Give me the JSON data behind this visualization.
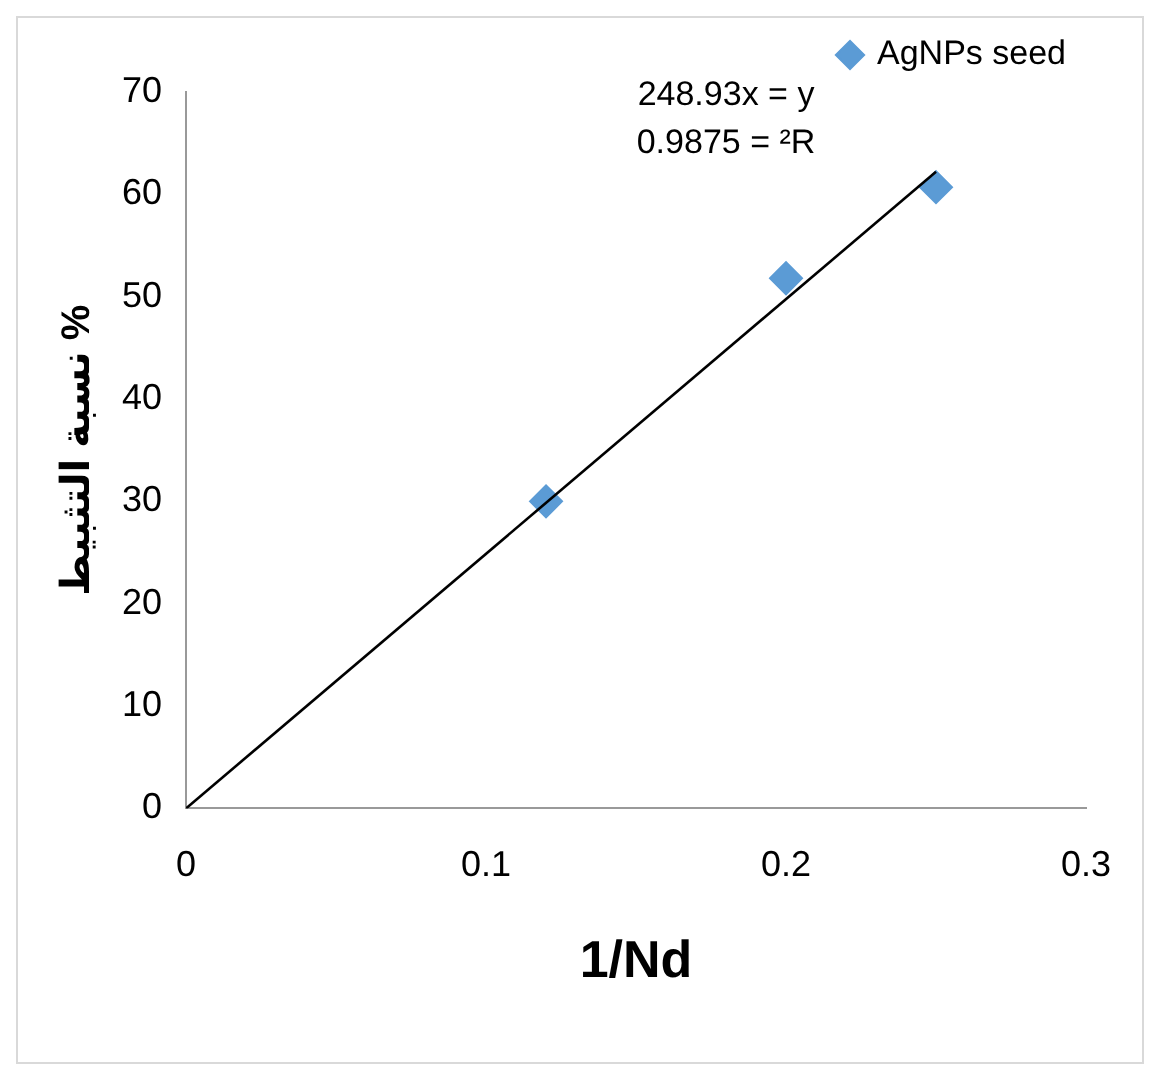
{
  "chart_data": {
    "type": "scatter",
    "xlabel": "1/Nd",
    "ylabel": "نسبة التثبيط %",
    "xlim": [
      0,
      0.3
    ],
    "xticks": [
      0,
      0.1,
      0.2,
      0.3
    ],
    "ylim": [
      0,
      70
    ],
    "yticks": [
      0,
      10,
      20,
      30,
      40,
      50,
      60,
      70
    ],
    "grid": false,
    "legend": "top right",
    "annotations": [
      "248.93x = y",
      "0.9875 = ²R"
    ],
    "series": [
      {
        "name": "AgNPs seed",
        "color": "#5b9bd5",
        "marker": "diamond",
        "x": [
          0.12,
          0.2,
          0.25
        ],
        "values": [
          30,
          51.8,
          60.7
        ]
      },
      {
        "type": "line",
        "color": "#000000",
        "marker": "none",
        "x": [
          0,
          0.25
        ],
        "values": [
          0,
          62.2
        ]
      }
    ]
  }
}
